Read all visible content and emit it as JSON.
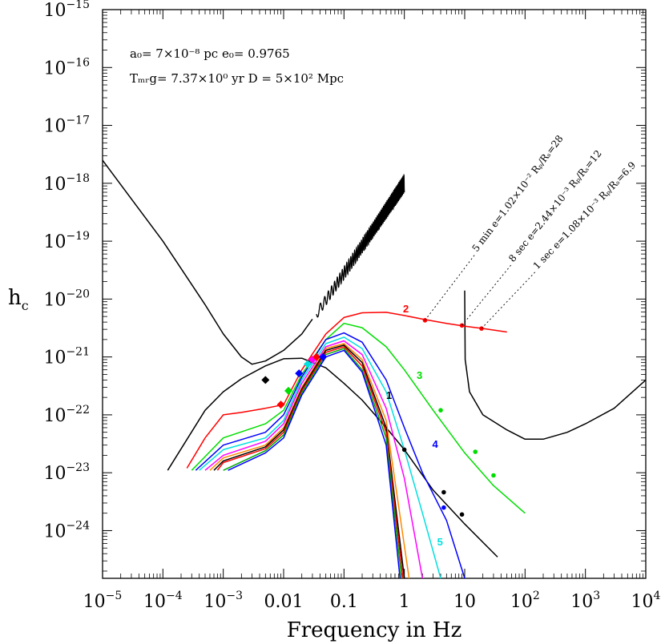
{
  "chart_data": {
    "type": "line",
    "xlabel": "Frequency in Hz",
    "ylabel": "h_c",
    "xscale": "log",
    "yscale": "log",
    "xlim": [
      1e-05,
      10000
    ],
    "ylim": [
      1.5e-25,
      1e-15
    ],
    "x_ticks": [
      {
        "base": "10",
        "exp": "-5",
        "value": 1e-05
      },
      {
        "base": "10",
        "exp": "-4",
        "value": 0.0001
      },
      {
        "base": "10",
        "exp": "-3",
        "value": 0.001
      },
      {
        "base": "0.01",
        "exp": "",
        "value": 0.01
      },
      {
        "base": "0.1",
        "exp": "",
        "value": 0.1
      },
      {
        "base": "1",
        "exp": "",
        "value": 1
      },
      {
        "base": "10",
        "exp": "",
        "value": 10
      },
      {
        "base": "10",
        "exp": "2",
        "value": 100
      },
      {
        "base": "10",
        "exp": "3",
        "value": 1000
      },
      {
        "base": "10",
        "exp": "4",
        "value": 10000
      }
    ],
    "y_ticks": [
      {
        "base": "10",
        "exp": "-15",
        "value": 1e-15
      },
      {
        "base": "10",
        "exp": "-16",
        "value": 1e-16
      },
      {
        "base": "10",
        "exp": "-17",
        "value": 1e-17
      },
      {
        "base": "10",
        "exp": "-18",
        "value": 1e-18
      },
      {
        "base": "10",
        "exp": "-19",
        "value": 1e-19
      },
      {
        "base": "10",
        "exp": "-20",
        "value": 1e-20
      },
      {
        "base": "10",
        "exp": "-21",
        "value": 1e-21
      },
      {
        "base": "10",
        "exp": "-22",
        "value": 1e-22
      },
      {
        "base": "10",
        "exp": "-23",
        "value": 1e-23
      },
      {
        "base": "10",
        "exp": "-24",
        "value": 1e-24
      }
    ],
    "header_lines": [
      "a₀= 7×10⁻⁸ pc  e₀= 0.9765",
      "Tₘᵣg= 7.37×10⁰ yr  D = 5×10² Mpc"
    ],
    "series": [
      {
        "label": "",
        "color": "#000000",
        "x": [
          1e-05,
          0.0001,
          0.0005,
          0.001,
          0.002,
          0.003,
          0.005,
          0.01,
          0.02,
          0.03
        ],
        "y": [
          2.5e-18,
          1e-19,
          8e-21,
          2.5e-21,
          1e-21,
          7.5e-22,
          8.5e-22,
          1.3e-21,
          2.5e-21,
          4.5e-21
        ]
      },
      {
        "label": "",
        "color": "#000000",
        "x": [
          10,
          10.2,
          12,
          20,
          50,
          100,
          200,
          500,
          1000,
          3000,
          10000
        ],
        "y": [
          1.4e-20,
          9e-22,
          2.5e-22,
          1e-22,
          5.5e-23,
          3.8e-23,
          3.8e-23,
          5e-23,
          7e-23,
          1.3e-22,
          4e-22
        ]
      },
      {
        "label": "1",
        "color": "#000000",
        "x": [
          0.00012,
          0.0005,
          0.001,
          0.002,
          0.005,
          0.01,
          0.02,
          0.05,
          0.1,
          0.2,
          0.5,
          1,
          3,
          10,
          35
        ],
        "y": [
          1.1e-23,
          1.2e-22,
          2.5e-22,
          4.2e-22,
          7e-22,
          9.3e-22,
          9.5e-22,
          6.5e-22,
          3.5e-22,
          1.8e-22,
          6e-23,
          2.5e-23,
          5e-24,
          1.3e-24,
          3.5e-25
        ]
      },
      {
        "label": "2",
        "color": "#ff0000",
        "x": [
          0.00025,
          0.0005,
          0.001,
          0.002,
          0.005,
          0.01,
          0.02,
          0.05,
          0.1,
          0.2,
          0.5,
          1,
          2,
          5,
          10,
          20,
          50
        ],
        "y": [
          1.2e-23,
          4e-23,
          1e-22,
          1.1e-22,
          1.3e-22,
          1.5e-22,
          6e-22,
          2.5e-21,
          4.8e-21,
          5.8e-21,
          5.9e-21,
          5.2e-21,
          4.5e-21,
          3.8e-21,
          3.4e-21,
          3.1e-21,
          2.7e-21
        ]
      },
      {
        "label": "3",
        "color": "#00dd00",
        "x": [
          0.0003,
          0.001,
          0.005,
          0.01,
          0.02,
          0.05,
          0.1,
          0.2,
          0.5,
          1,
          3,
          10,
          30,
          100
        ],
        "y": [
          1.1e-23,
          4e-23,
          7e-23,
          1.2e-22,
          5e-22,
          2e-21,
          3.8e-21,
          3.2e-21,
          1.5e-21,
          6e-22,
          1.2e-22,
          2.2e-23,
          6e-24,
          2e-24
        ]
      },
      {
        "label": "4",
        "color": "#0000ff",
        "x": [
          0.00035,
          0.001,
          0.005,
          0.01,
          0.02,
          0.05,
          0.1,
          0.2,
          0.5,
          1,
          2,
          5,
          10
        ],
        "y": [
          1.1e-23,
          3e-23,
          5e-23,
          1e-22,
          4.5e-22,
          2e-21,
          2.6e-21,
          1.8e-21,
          4e-22,
          6e-23,
          1e-23,
          1.5e-24,
          1.5e-25
        ]
      },
      {
        "label": "5",
        "color": "#00e0e0",
        "x": [
          0.0004,
          0.001,
          0.005,
          0.01,
          0.02,
          0.05,
          0.1,
          0.2,
          0.5,
          1,
          2,
          4
        ],
        "y": [
          1.1e-23,
          2.5e-23,
          4e-23,
          8e-23,
          4e-22,
          1.7e-21,
          2.2e-21,
          1.4e-21,
          2.5e-22,
          2.5e-23,
          2e-24,
          1.5e-25
        ]
      },
      {
        "label": "",
        "color": "#ff00ff",
        "x": [
          0.0005,
          0.001,
          0.005,
          0.01,
          0.02,
          0.05,
          0.1,
          0.2,
          0.5,
          1,
          2
        ],
        "y": [
          1.1e-23,
          2e-23,
          3.5e-23,
          7e-23,
          3.5e-22,
          1.5e-21,
          1.9e-21,
          1.1e-21,
          1.3e-22,
          8e-24,
          1.5e-25
        ]
      },
      {
        "label": "",
        "color": "#ff8800",
        "x": [
          0.0006,
          0.001,
          0.005,
          0.01,
          0.02,
          0.05,
          0.1,
          0.2,
          0.5,
          1.2
        ],
        "y": [
          1.1e-23,
          1.8e-23,
          3e-23,
          6e-23,
          3e-22,
          1.4e-21,
          1.7e-21,
          9e-22,
          8e-23,
          1.5e-25
        ]
      },
      {
        "label": "",
        "color": "#000000",
        "x": [
          0.0007,
          0.001,
          0.005,
          0.01,
          0.02,
          0.05,
          0.1,
          0.2,
          0.5,
          1.0
        ],
        "y": [
          1.1e-23,
          1.6e-23,
          2.8e-23,
          5.5e-23,
          2.8e-22,
          1.3e-21,
          1.6e-21,
          8e-22,
          6e-23,
          1.5e-25
        ]
      },
      {
        "label": "",
        "color": "#ff0000",
        "x": [
          0.0008,
          0.001,
          0.005,
          0.01,
          0.02,
          0.05,
          0.1,
          0.2,
          0.5,
          0.95
        ],
        "y": [
          1.1e-23,
          1.5e-23,
          2.6e-23,
          5e-23,
          2.6e-22,
          1.2e-21,
          1.5e-21,
          7e-22,
          5e-23,
          1.5e-25
        ]
      },
      {
        "label": "",
        "color": "#00aa00",
        "x": [
          0.001,
          0.005,
          0.01,
          0.02,
          0.05,
          0.1,
          0.2,
          0.5,
          0.9
        ],
        "y": [
          1.1e-23,
          2.4e-23,
          4.5e-23,
          2.4e-22,
          1.1e-21,
          1.4e-21,
          6e-22,
          4e-23,
          1.5e-25
        ]
      },
      {
        "label": "",
        "color": "#0000ff",
        "x": [
          0.0012,
          0.005,
          0.01,
          0.02,
          0.05,
          0.1,
          0.2,
          0.5,
          0.85
        ],
        "y": [
          1.1e-23,
          2.2e-23,
          4e-23,
          2.2e-22,
          1e-21,
          1.3e-21,
          5.5e-22,
          3e-23,
          1.5e-25
        ]
      }
    ],
    "markers": [
      {
        "x": 0.005,
        "y": 4e-22,
        "color": "#000000",
        "shape": "diamond"
      },
      {
        "x": 0.009,
        "y": 1.5e-22,
        "color": "#ff0000",
        "shape": "diamond"
      },
      {
        "x": 0.012,
        "y": 2.6e-22,
        "color": "#00dd00",
        "shape": "diamond"
      },
      {
        "x": 0.018,
        "y": 5.2e-22,
        "color": "#0000ff",
        "shape": "diamond"
      },
      {
        "x": 0.025,
        "y": 7.5e-22,
        "color": "#00e0e0",
        "shape": "diamond"
      },
      {
        "x": 0.03,
        "y": 9e-22,
        "color": "#ff00ff",
        "shape": "diamond"
      },
      {
        "x": 0.035,
        "y": 1e-21,
        "color": "#ff0000",
        "shape": "diamond"
      },
      {
        "x": 0.045,
        "y": 1e-21,
        "color": "#0000ff",
        "shape": "diamond"
      },
      {
        "x": 2.2,
        "y": 4.3e-21,
        "color": "#ff0000",
        "shape": "dot"
      },
      {
        "x": 9.0,
        "y": 3.5e-21,
        "color": "#ff0000",
        "shape": "dot"
      },
      {
        "x": 19.0,
        "y": 3.1e-21,
        "color": "#ff0000",
        "shape": "dot"
      },
      {
        "x": 4.0,
        "y": 1.2e-22,
        "color": "#00dd00",
        "shape": "dot"
      },
      {
        "x": 15,
        "y": 2.3e-23,
        "color": "#00dd00",
        "shape": "dot"
      },
      {
        "x": 30,
        "y": 9e-24,
        "color": "#00dd00",
        "shape": "dot"
      },
      {
        "x": 1.0,
        "y": 2.5e-23,
        "color": "#000000",
        "shape": "dot"
      },
      {
        "x": 4.5,
        "y": 4.6e-24,
        "color": "#000000",
        "shape": "dot"
      },
      {
        "x": 9.0,
        "y": 1.9e-24,
        "color": "#000000",
        "shape": "dot"
      },
      {
        "x": 4.5,
        "y": 2.5e-24,
        "color": "#0000ff",
        "shape": "dot"
      }
    ],
    "wiggle": {
      "x_start": 0.035,
      "x_end": 1.0,
      "y_start": 5.5e-21,
      "y_end": 1e-18,
      "cycles": 38
    },
    "curve_labels": [
      {
        "text": "1",
        "x": 0.5,
        "y": 1.9e-22,
        "color": "#000000"
      },
      {
        "text": "2",
        "x": 0.95,
        "y": 5.9e-21,
        "color": "#ff0000"
      },
      {
        "text": "3",
        "x": 1.6,
        "y": 4.2e-22,
        "color": "#00dd00"
      },
      {
        "text": "4",
        "x": 2.9,
        "y": 2.7e-23,
        "color": "#0000ff"
      },
      {
        "text": "5",
        "x": 3.5,
        "y": 5.5e-25,
        "color": "#00e0e0"
      }
    ],
    "annotations": [
      {
        "text": "5 min e=1.02×10⁻² Rₚ/Rₛ=28",
        "from_x": 2.2,
        "from_y": 4.3e-21,
        "to_x": 15,
        "to_y": 6e-20
      },
      {
        "text": "8 sec e=2.44×10⁻³ Rₚ/Rₛ=12",
        "from_x": 9.0,
        "from_y": 3.5e-21,
        "to_x": 60,
        "to_y": 4e-20
      },
      {
        "text": "1 sec e=1.08×10⁻³ Rₚ/Rₛ=6.9",
        "from_x": 19.0,
        "from_y": 3.1e-21,
        "to_x": 150,
        "to_y": 3e-20
      }
    ]
  }
}
